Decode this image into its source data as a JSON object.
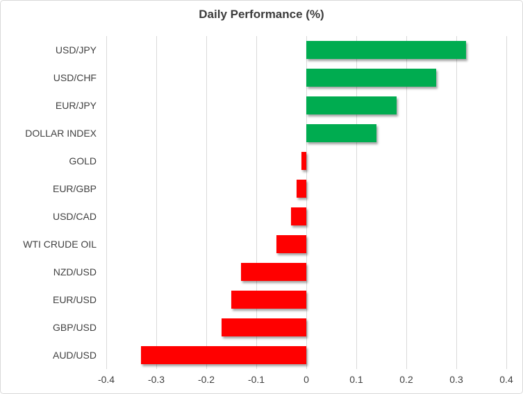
{
  "title": "Daily Performance (%)",
  "colors": {
    "positive_bar": "#00AC50",
    "negative_bar": "#FF0000",
    "gridline": "#D9D9D9",
    "border": "#D9D9D9",
    "text": "#404040",
    "title_text": "#3B3B3B"
  },
  "chart_data": {
    "type": "bar",
    "orientation": "horizontal",
    "title": "Daily Performance (%)",
    "categories": [
      "USD/JPY",
      "USD/CHF",
      "EUR/JPY",
      "DOLLAR INDEX",
      "GOLD",
      "EUR/GBP",
      "USD/CAD",
      "WTI CRUDE OIL",
      "NZD/USD",
      "EUR/USD",
      "GBP/USD",
      "AUD/USD"
    ],
    "values": [
      0.32,
      0.26,
      0.18,
      0.14,
      -0.01,
      -0.02,
      -0.03,
      -0.06,
      -0.13,
      -0.15,
      -0.17,
      -0.33
    ],
    "xlabel": "",
    "ylabel": "",
    "xlim": [
      -0.4,
      0.4
    ],
    "x_ticks": [
      -0.4,
      -0.3,
      -0.2,
      -0.1,
      0,
      0.1,
      0.2,
      0.3,
      0.4
    ],
    "x_tick_labels": [
      "-0.4",
      "-0.3",
      "-0.2",
      "-0.1",
      "0",
      "0.1",
      "0.2",
      "0.3",
      "0.4"
    ],
    "grid": true,
    "legend": false,
    "bar_color_rule": "positive green, negative red"
  }
}
